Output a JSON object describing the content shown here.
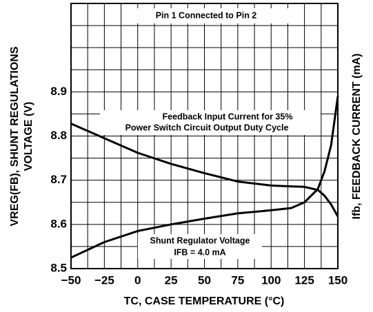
{
  "chart_data": {
    "type": "line",
    "x_label": "TC, CASE TEMPERATURE (°C)",
    "y_label": [
      "VREG(FB), SHUNT REGULATIONS",
      "VOLTAGE (V)"
    ],
    "y2_label": "Ifb, FEEDBACK CURRENT (mA)",
    "annotations": [
      "Pin 1 Connected to Pin 2",
      "Feedback Input Current for 35%",
      "Power Switch Circuit Output Duty Cycle",
      "Shunt Regulator Voltage",
      "IFB = 4.0 mA"
    ],
    "x": [
      -50,
      -25,
      0,
      25,
      50,
      75,
      100,
      115,
      125,
      135,
      140,
      145,
      150
    ],
    "series": [
      {
        "name": "Feedback Input Current",
        "color": "#000000",
        "values": [
          8.828,
          8.795,
          8.762,
          8.737,
          8.716,
          8.697,
          8.688,
          8.686,
          8.685,
          8.678,
          8.665,
          8.645,
          8.618
        ]
      },
      {
        "name": "Shunt Regulator Voltage",
        "color": "#000000",
        "values": [
          8.525,
          8.56,
          8.585,
          8.6,
          8.613,
          8.625,
          8.632,
          8.637,
          8.65,
          8.68,
          8.72,
          8.78,
          8.89
        ]
      }
    ],
    "xlim": [
      -50,
      150
    ],
    "xticks": [
      {
        "value": -50,
        "label": "−50"
      },
      {
        "value": -25,
        "label": "−25"
      },
      0,
      25,
      50,
      75,
      100,
      125,
      150
    ],
    "xminor": [
      -37.5,
      -12.5,
      12.5,
      37.5,
      62.5,
      87.5,
      112.5,
      137.5
    ],
    "ylim": [
      8.5,
      9.1
    ],
    "yticks": [
      8.5,
      8.6,
      8.7,
      8.8,
      8.9
    ],
    "yminor": [
      8.55,
      8.65,
      8.75,
      8.85,
      8.95,
      9.0,
      9.05
    ],
    "grid": true
  }
}
